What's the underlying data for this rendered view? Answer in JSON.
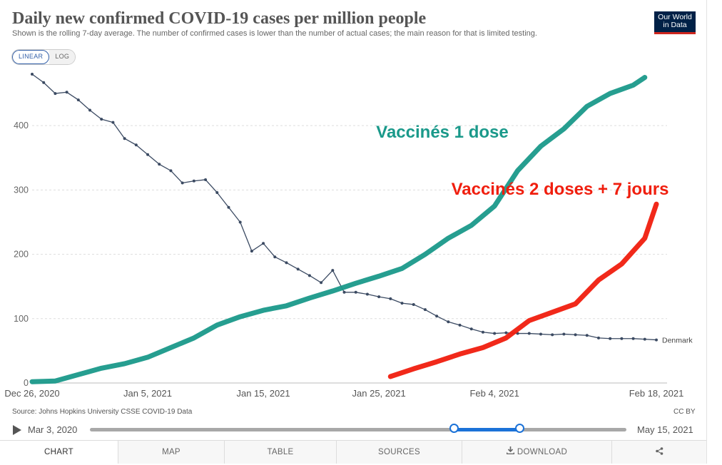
{
  "header": {
    "title": "Daily new confirmed COVID-19 cases per million people",
    "subtitle": "Shown is the rolling 7-day average. The number of confirmed cases is lower than the number of actual cases; the main reason for that is limited testing.",
    "logo_line1": "Our World",
    "logo_line2": "in Data"
  },
  "controls": {
    "linear_label": "LINEAR",
    "log_label": "LOG"
  },
  "chart_data": {
    "type": "line",
    "title": "Daily new confirmed COVID-19 cases per million people",
    "ylim": [
      0,
      480
    ],
    "y_ticks": [
      0,
      100,
      200,
      300,
      400
    ],
    "x_tick_labels": [
      "Dec 26, 2020",
      "Jan 5, 2021",
      "Jan 15, 2021",
      "Jan 25, 2021",
      "Feb 4, 2021",
      "Feb 18, 2021"
    ],
    "x_tick_days": [
      0,
      10,
      20,
      30,
      40,
      54
    ],
    "grid": true,
    "series": [
      {
        "name": "Denmark",
        "color": "#3b4a62",
        "x_days": [
          0,
          1,
          2,
          3,
          4,
          5,
          6,
          7,
          8,
          9,
          10,
          11,
          12,
          13,
          14,
          15,
          16,
          17,
          18,
          19,
          20,
          21,
          22,
          23,
          24,
          25,
          26,
          27,
          28,
          29,
          30,
          31,
          32,
          33,
          34,
          35,
          36,
          37,
          38,
          39,
          40,
          41,
          42,
          43,
          44,
          45,
          46,
          47,
          48,
          49,
          50,
          51,
          52,
          53,
          54
        ],
        "values": [
          480,
          467,
          450,
          452,
          440,
          424,
          410,
          405,
          380,
          370,
          355,
          340,
          330,
          311,
          314,
          316,
          296,
          273,
          250,
          205,
          217,
          196,
          187,
          177,
          167,
          156,
          175,
          141,
          141,
          138,
          134,
          131,
          124,
          122,
          114,
          104,
          95,
          90,
          84,
          79,
          77,
          78,
          77,
          77,
          76,
          75,
          76,
          75,
          74,
          70,
          69,
          69,
          69,
          68,
          67
        ]
      },
      {
        "name": "Vaccinés 1 dose",
        "color": "#1a998a",
        "x_days": [
          0,
          2,
          4,
          6,
          8,
          10,
          12,
          14,
          16,
          18,
          20,
          22,
          24,
          26,
          28,
          30,
          32,
          34,
          36,
          38,
          40,
          42,
          44,
          46,
          48,
          50,
          52,
          53
        ],
        "values": [
          2,
          3,
          13,
          23,
          30,
          40,
          55,
          70,
          90,
          103,
          113,
          120,
          132,
          143,
          155,
          166,
          178,
          200,
          225,
          245,
          275,
          330,
          368,
          395,
          430,
          450,
          463,
          475
        ]
      },
      {
        "name": "Vaccinés 2 doses + 7 jours",
        "color": "#f01e0e",
        "x_days": [
          31,
          33,
          35,
          37,
          39,
          41,
          43,
          45,
          47,
          49,
          51,
          53,
          54
        ],
        "values": [
          10,
          22,
          33,
          45,
          55,
          70,
          97,
          110,
          123,
          160,
          185,
          225,
          278
        ]
      }
    ],
    "annotations": [
      "Vaccinés 1 dose",
      "Vaccinés 2 doses + 7 jours"
    ],
    "end_label": "Denmark"
  },
  "footer": {
    "source": "Source: Johns Hopkins University CSSE COVID-19 Data",
    "license": "CC BY",
    "timeline_start": "Mar 3, 2020",
    "timeline_end": "May 15, 2021"
  },
  "tabs": [
    {
      "label": "CHART",
      "active": true
    },
    {
      "label": "MAP",
      "active": false
    },
    {
      "label": "TABLE",
      "active": false
    },
    {
      "label": "SOURCES",
      "active": false
    },
    {
      "label": "DOWNLOAD",
      "active": false
    },
    {
      "label": "",
      "active": false
    }
  ]
}
